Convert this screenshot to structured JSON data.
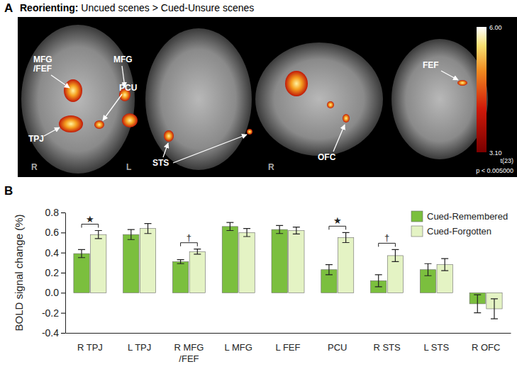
{
  "panel_a": {
    "label": "A",
    "title_bold": "Reorienting:",
    "title": "Uncued scenes > Cued-Unsure scenes",
    "labels": [
      "MFG\n/FEF",
      "MFG",
      "PCU",
      "TPJ",
      "R",
      "L",
      "STS",
      "R",
      "OFC",
      "FEF"
    ],
    "colorbar": {
      "range": [
        3.1,
        6
      ],
      "ticks": [
        {
          "value": 6,
          "label": "6.00"
        },
        {
          "value": 3.1,
          "label": "3.10"
        }
      ],
      "label": "t(23)",
      "threshold": "p < 0.005000"
    }
  },
  "chart_data": {
    "type": "bar",
    "panel_label": "B",
    "y_label": "BOLD signal change (%)",
    "categories": [
      "R TPJ",
      "L TPJ",
      "R MFG\n/FEF",
      "L MFG",
      "L FEF",
      "PCU",
      "R STS",
      "L STS",
      "R OFC"
    ],
    "series": [
      {
        "name": "Cued-Remembered",
        "color": "#7bbf3e",
        "values": [
          0.39,
          0.58,
          0.31,
          0.66,
          0.63,
          0.23,
          0.12,
          0.23,
          -0.11
        ],
        "errors": [
          0.04,
          0.05,
          0.02,
          0.04,
          0.04,
          0.05,
          0.06,
          0.06,
          0.09
        ]
      },
      {
        "name": "Cued-Forgotten",
        "color": "#e4f3c4",
        "values": [
          0.58,
          0.64,
          0.41,
          0.6,
          0.62,
          0.55,
          0.37,
          0.28,
          -0.16
        ],
        "errors": [
          0.04,
          0.05,
          0.025,
          0.04,
          0.035,
          0.05,
          0.06,
          0.06,
          0.1
        ]
      }
    ],
    "annotations": [
      {
        "category": "R TPJ",
        "text": "★"
      },
      {
        "category": "R MFG\n/FEF",
        "text": "†"
      },
      {
        "category": "PCU",
        "text": "★"
      },
      {
        "category": "R STS",
        "text": "†"
      }
    ],
    "ylim": [
      -0.4,
      0.8
    ],
    "yticks": [
      -0.4,
      -0.2,
      {
        "value": 0,
        "label": "0.0"
      },
      0.2,
      0.4,
      0.6,
      0.8
    ],
    "grid": false,
    "legend": "top-right"
  }
}
